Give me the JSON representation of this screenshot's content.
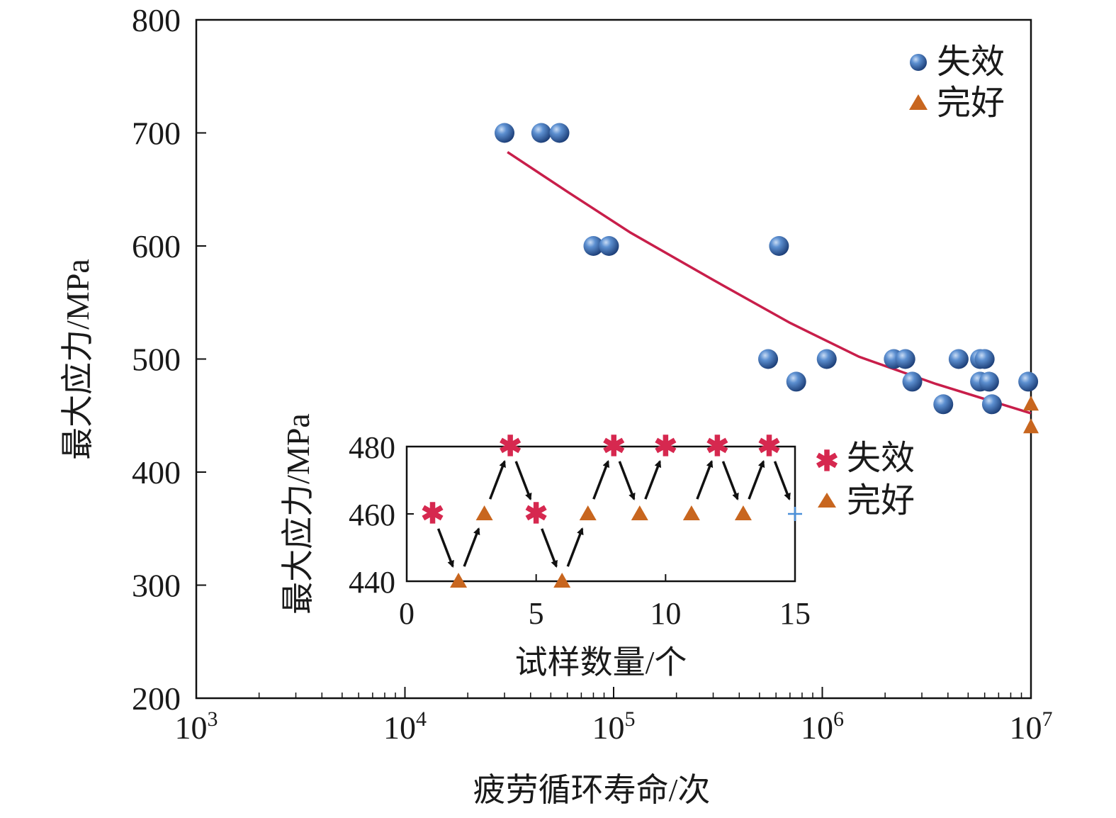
{
  "chart_data": [
    {
      "type": "scatter",
      "xlabel": "疲劳循环寿命/次",
      "ylabel": "最大应力/MPa",
      "xscale": "log",
      "xlim": [
        1000,
        10000000
      ],
      "ylim": [
        200,
        800
      ],
      "xtick_labels": [
        {
          "base": "10",
          "exp": "3"
        },
        {
          "base": "10",
          "exp": "4"
        },
        {
          "base": "10",
          "exp": "5"
        },
        {
          "base": "10",
          "exp": "6"
        },
        {
          "base": "10",
          "exp": "7"
        }
      ],
      "yticks": [
        200,
        300,
        400,
        500,
        600,
        700,
        800
      ],
      "legend_position": "top-right",
      "series": [
        {
          "name": "失效",
          "marker": "sphere",
          "color": "#3a6fb5",
          "points": [
            [
              30000,
              700
            ],
            [
              45000,
              700
            ],
            [
              55000,
              700
            ],
            [
              80000,
              600
            ],
            [
              95000,
              600
            ],
            [
              620000,
              600
            ],
            [
              550000,
              500
            ],
            [
              1050000,
              500
            ],
            [
              2200000,
              500
            ],
            [
              2500000,
              500
            ],
            [
              4500000,
              500
            ],
            [
              5700000,
              500
            ],
            [
              6000000,
              500
            ],
            [
              750000,
              480
            ],
            [
              2700000,
              480
            ],
            [
              5700000,
              480
            ],
            [
              6300000,
              480
            ],
            [
              9700000,
              480
            ],
            [
              3800000,
              460
            ],
            [
              6500000,
              460
            ]
          ]
        },
        {
          "name": "完好",
          "marker": "triangle",
          "color": "#c8661f",
          "points": [
            [
              10000000,
              460
            ],
            [
              10000000,
              440
            ]
          ]
        }
      ],
      "fit_line": {
        "color": "#c81e4a",
        "points": [
          [
            31000,
            683
          ],
          [
            60000,
            648
          ],
          [
            120000,
            612
          ],
          [
            300000,
            570
          ],
          [
            700000,
            532
          ],
          [
            1500000,
            502
          ],
          [
            3500000,
            478
          ],
          [
            10000000,
            452
          ]
        ]
      }
    },
    {
      "type": "scatter",
      "xlabel": "试样数量/个",
      "ylabel": "最大应力/MPa",
      "xlim": [
        0,
        15
      ],
      "ylim": [
        440,
        480
      ],
      "xticks": [
        0,
        5,
        10,
        15
      ],
      "yticks": [
        440,
        460,
        480
      ],
      "legend_position": "right",
      "series": [
        {
          "name": "失效",
          "marker": "star",
          "color": "#d6284f",
          "points": [
            [
              1,
              460
            ],
            [
              4,
              480
            ],
            [
              5,
              460
            ],
            [
              8,
              480
            ],
            [
              10,
              480
            ],
            [
              12,
              480
            ],
            [
              14,
              480
            ]
          ]
        },
        {
          "name": "完好",
          "marker": "triangle",
          "color": "#c8661f",
          "points": [
            [
              2,
              440
            ],
            [
              3,
              460
            ],
            [
              6,
              440
            ],
            [
              7,
              460
            ],
            [
              9,
              460
            ],
            [
              11,
              460
            ],
            [
              13,
              460
            ]
          ]
        }
      ],
      "extra_point": {
        "marker": "plus",
        "color": "#4a90d9",
        "point": [
          15,
          460
        ]
      },
      "arrows": [
        [
          [
            1,
            460
          ],
          [
            2,
            440
          ]
        ],
        [
          [
            2,
            440
          ],
          [
            3,
            460
          ]
        ],
        [
          [
            3,
            460
          ],
          [
            4,
            480
          ]
        ],
        [
          [
            4,
            480
          ],
          [
            5,
            460
          ]
        ],
        [
          [
            5,
            460
          ],
          [
            6,
            440
          ]
        ],
        [
          [
            6,
            440
          ],
          [
            7,
            460
          ]
        ],
        [
          [
            7,
            460
          ],
          [
            8,
            480
          ]
        ],
        [
          [
            8,
            480
          ],
          [
            9,
            460
          ]
        ],
        [
          [
            9,
            460
          ],
          [
            10,
            480
          ]
        ],
        [
          [
            11,
            460
          ],
          [
            12,
            480
          ]
        ],
        [
          [
            12,
            480
          ],
          [
            13,
            460
          ]
        ],
        [
          [
            13,
            460
          ],
          [
            14,
            480
          ]
        ],
        [
          [
            14,
            480
          ],
          [
            15,
            460
          ]
        ]
      ]
    }
  ]
}
